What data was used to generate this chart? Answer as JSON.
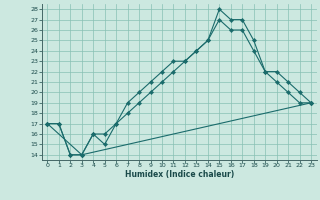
{
  "xlabel": "Humidex (Indice chaleur)",
  "ylabel": "",
  "bg_color": "#cce8e0",
  "grid_color": "#88c0b4",
  "line_color": "#1a6b6b",
  "xlim": [
    -0.5,
    23.5
  ],
  "ylim": [
    13.5,
    28.5
  ],
  "xticks": [
    0,
    1,
    2,
    3,
    4,
    5,
    6,
    7,
    8,
    9,
    10,
    11,
    12,
    13,
    14,
    15,
    16,
    17,
    18,
    19,
    20,
    21,
    22,
    23
  ],
  "yticks": [
    14,
    15,
    16,
    17,
    18,
    19,
    20,
    21,
    22,
    23,
    24,
    25,
    26,
    27,
    28
  ],
  "line1_x": [
    0,
    1,
    2,
    3,
    4,
    5,
    6,
    7,
    8,
    9,
    10,
    11,
    12,
    13,
    14,
    15,
    16,
    17,
    18,
    19,
    20,
    21,
    22,
    23
  ],
  "line1_y": [
    17,
    17,
    14,
    14,
    16,
    15,
    17,
    19,
    20,
    21,
    22,
    23,
    23,
    24,
    25,
    28,
    27,
    27,
    25,
    22,
    21,
    20,
    19,
    19
  ],
  "line2_x": [
    0,
    1,
    2,
    3,
    4,
    5,
    6,
    7,
    8,
    9,
    10,
    11,
    12,
    13,
    14,
    15,
    16,
    17,
    18,
    19,
    20,
    21,
    22,
    23
  ],
  "line2_y": [
    17,
    17,
    14,
    14,
    16,
    16,
    17,
    18,
    19,
    20,
    21,
    22,
    23,
    24,
    25,
    27,
    26,
    26,
    24,
    22,
    22,
    21,
    20,
    19
  ],
  "line3_x": [
    0,
    3,
    23
  ],
  "line3_y": [
    17,
    14,
    19
  ]
}
